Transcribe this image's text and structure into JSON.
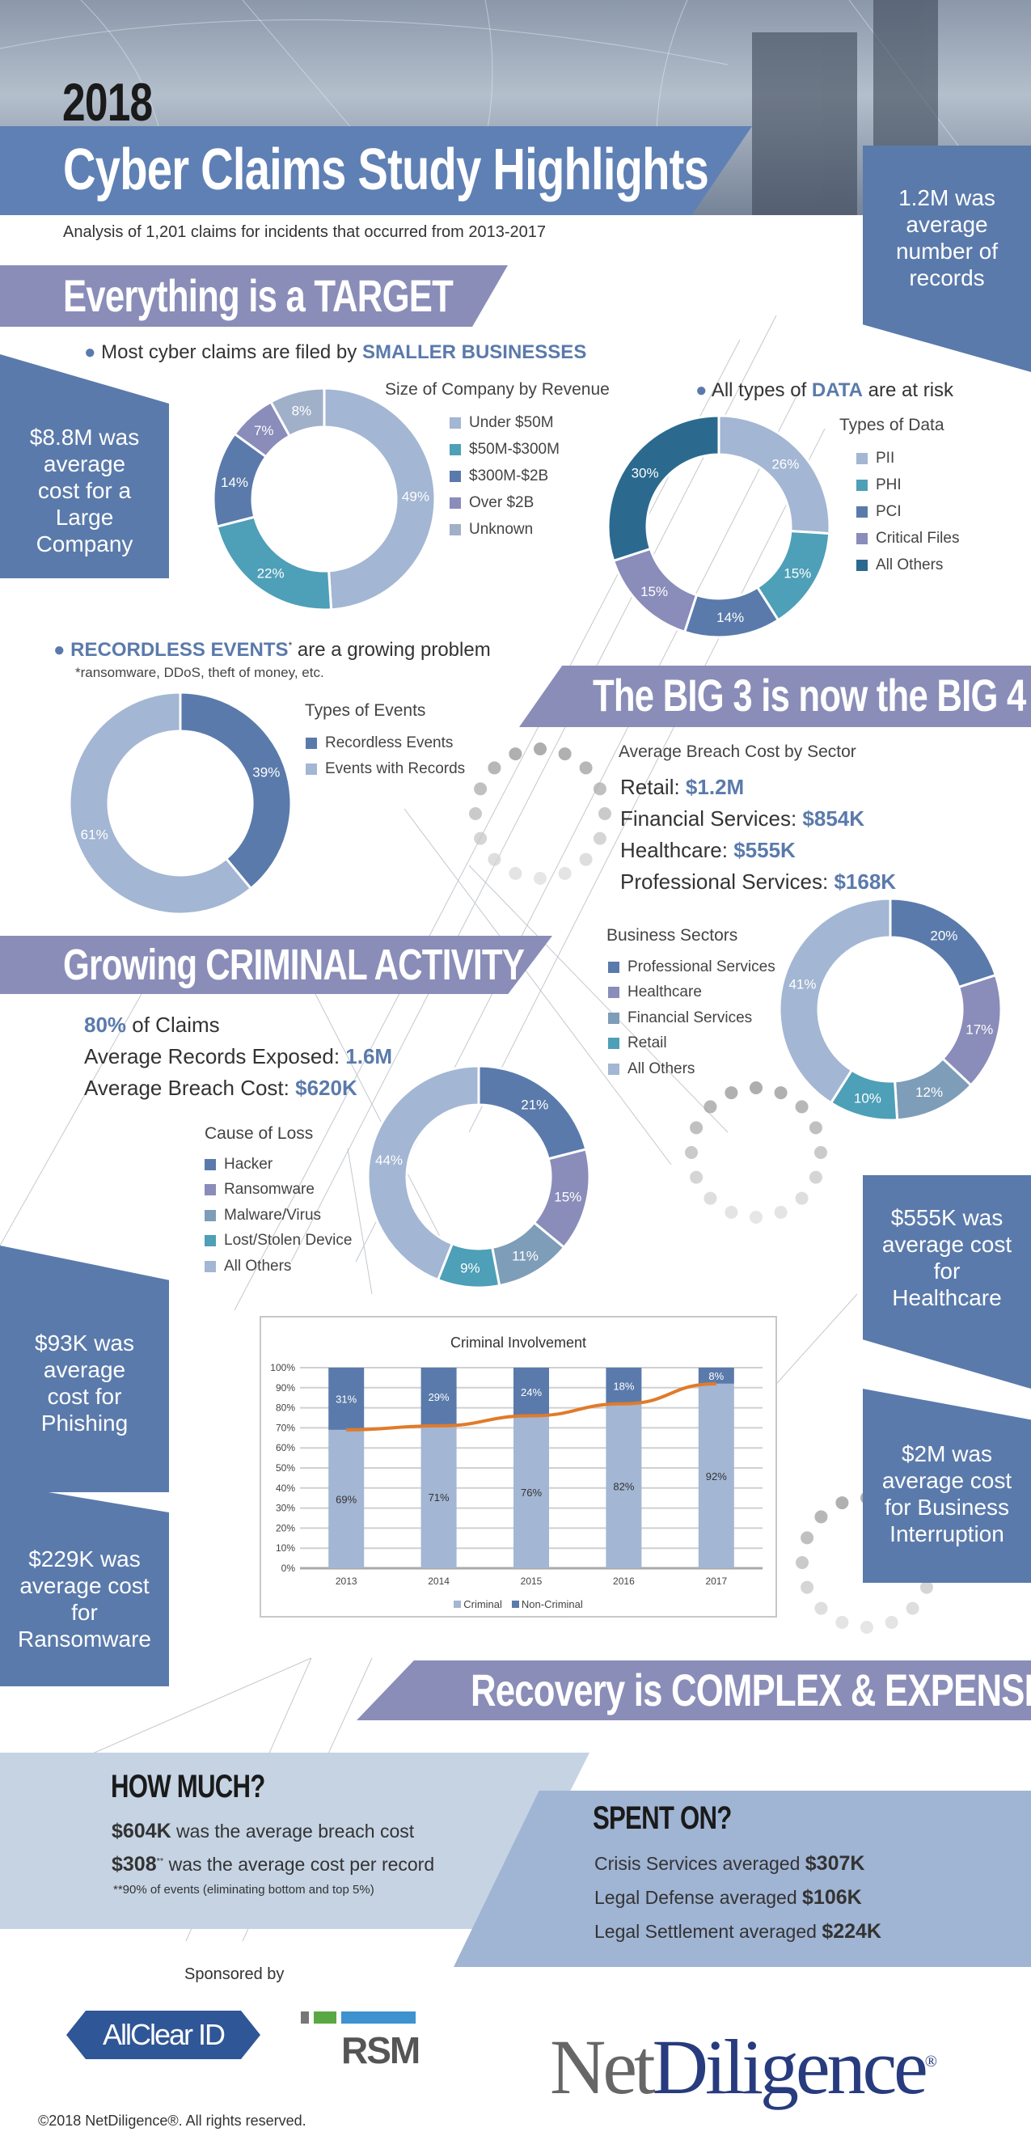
{
  "header": {
    "year": "2018",
    "title": "Cyber Claims Study Highlights",
    "subtitle": "Analysis of 1,201 claims for incidents that occurred from 2013-2017"
  },
  "colors": {
    "dark_blue": "#5a7aab",
    "light_blue": "#a3b6d3",
    "teal": "#4e9fb8",
    "purple": "#8a8cba",
    "gray_blue": "#7d9db8",
    "dark_teal": "#2b6a8e",
    "banner": "#8a8db8",
    "orange": "#e07b2a"
  },
  "callouts": {
    "records": "1.2M was average number of records",
    "large_company": "$8.8M was average cost for a Large Company",
    "healthcare": "$555K was average cost for Healthcare",
    "phishing": "$93K was average cost for Phishing",
    "ransomware": "$229K was average cost for Ransomware",
    "business_interruption": "$2M was average cost for Business Interruption"
  },
  "target": {
    "heading": "Everything is a TARGET",
    "bullet_pre": "Most cyber claims are filed by ",
    "bullet_hl": "SMALLER BUSINESSES",
    "data_pre": "All types of ",
    "data_hl": "DATA",
    "data_post": " are at risk"
  },
  "recordless": {
    "hl": "RECORDLESS EVENTS",
    "mark": "*",
    "post": " are a growing problem",
    "footnote": "*ransomware, DDoS, theft of money, etc."
  },
  "big4": {
    "heading": "The BIG 3 is now the BIG 4",
    "subheading": "Average Breach Cost by Sector",
    "lines": [
      {
        "label": "Retail: ",
        "value": "$1.2M"
      },
      {
        "label": "Financial Services: ",
        "value": "$854K"
      },
      {
        "label": "Healthcare: ",
        "value": "$555K"
      },
      {
        "label": "Professional Services: ",
        "value": "$168K"
      }
    ]
  },
  "criminal": {
    "heading": "Growing CRIMINAL ACTIVITY",
    "claims_value": "80%",
    "claims_label": " of Claims",
    "records_label": "Average Records Exposed: ",
    "records_value": "1.6M",
    "cost_label": "Average Breach Cost: ",
    "cost_value": "$620K"
  },
  "recovery": {
    "heading": "Recovery is COMPLEX & EXPENSIVE",
    "how_much": {
      "title": "HOW MUCH?",
      "line1_value": "$604K",
      "line1_text": " was the average breach cost",
      "line2_value": "$308",
      "line2_mark": "**",
      "line2_text": " was the average cost per record",
      "footnote": "**90% of events (eliminating bottom and top 5%)"
    },
    "spent_on": {
      "title": "SPENT ON?",
      "items": [
        {
          "label": "Crisis Services averaged ",
          "value": "$307K"
        },
        {
          "label": "Legal Defense averaged ",
          "value": "$106K"
        },
        {
          "label": "Legal Settlement averaged ",
          "value": "$224K"
        }
      ]
    }
  },
  "footer": {
    "sponsored_by": "Sponsored by",
    "sponsor1": "AllClear ID",
    "sponsor2": "RSM",
    "brand_net": "Net",
    "brand_diligence": "Diligence",
    "brand_reg": "®",
    "copyright": "©2018 NetDiligence®. All rights reserved."
  },
  "chart_data": [
    {
      "type": "pie",
      "id": "revenue",
      "title": "Size of Company by Revenue",
      "categories": [
        "Under $50M",
        "$50M-$300M",
        "$300M-$2B",
        "Over $2B",
        "Unknown"
      ],
      "values": [
        49,
        22,
        14,
        7,
        8
      ],
      "colors": [
        "#a3b6d3",
        "#4e9fb8",
        "#5a7aab",
        "#8a8cba",
        "#a0b0c8"
      ],
      "labels": [
        "49%",
        "22%",
        "14%",
        "7%",
        "8%"
      ]
    },
    {
      "type": "pie",
      "id": "data",
      "title": "Types of Data",
      "categories": [
        "PII",
        "PHI",
        "PCI",
        "Critical Files",
        "All Others"
      ],
      "values": [
        26,
        15,
        14,
        15,
        30
      ],
      "colors": [
        "#a3b6d3",
        "#4e9fb8",
        "#5a7aab",
        "#8a8cba",
        "#2b6a8e"
      ],
      "labels": [
        "26%",
        "15%",
        "14%",
        "15%",
        "30%"
      ]
    },
    {
      "type": "pie",
      "id": "events",
      "title": "Types of Events",
      "categories": [
        "Recordless Events",
        "Events with Records"
      ],
      "values": [
        39,
        61
      ],
      "colors": [
        "#5a7aab",
        "#a3b6d3"
      ],
      "labels": [
        "39%",
        "61%"
      ]
    },
    {
      "type": "pie",
      "id": "sectors",
      "title": "Business Sectors",
      "categories": [
        "Professional Services",
        "Healthcare",
        "Financial Services",
        "Retail",
        "All Others"
      ],
      "values": [
        20,
        17,
        12,
        10,
        41
      ],
      "colors": [
        "#5a7aab",
        "#8a8cba",
        "#7d9db8",
        "#4e9fb8",
        "#a3b6d3"
      ],
      "labels": [
        "20%",
        "17%",
        "12%",
        "10%",
        "41%"
      ]
    },
    {
      "type": "pie",
      "id": "loss",
      "title": "Cause of Loss",
      "categories": [
        "Hacker",
        "Ransomware",
        "Malware/Virus",
        "Lost/Stolen Device",
        "All Others"
      ],
      "values": [
        21,
        15,
        11,
        9,
        44
      ],
      "colors": [
        "#5a7aab",
        "#8a8cba",
        "#7d9db8",
        "#4e9fb8",
        "#a3b6d3"
      ],
      "labels": [
        "21%",
        "15%",
        "11%",
        "9%",
        "44%"
      ]
    },
    {
      "type": "bar",
      "id": "criminal",
      "title": "Criminal Involvement",
      "categories": [
        "2013",
        "2014",
        "2015",
        "2016",
        "2017"
      ],
      "series": [
        {
          "name": "Criminal",
          "values": [
            69,
            71,
            76,
            82,
            92
          ],
          "color": "#a3b6d3",
          "labels": [
            "69%",
            "71%",
            "76%",
            "82%",
            "92%"
          ]
        },
        {
          "name": "Non-Criminal",
          "values": [
            31,
            29,
            24,
            18,
            8
          ],
          "color": "#5a7aab",
          "labels": [
            "31%",
            "29%",
            "24%",
            "18%",
            "8%"
          ]
        }
      ],
      "trend_line": {
        "values": [
          69,
          71,
          76,
          82,
          92
        ],
        "color": "#e07b2a"
      },
      "ylim": [
        0,
        100
      ],
      "yticks": [
        "0%",
        "10%",
        "20%",
        "30%",
        "40%",
        "50%",
        "60%",
        "70%",
        "80%",
        "90%",
        "100%"
      ],
      "grid": true,
      "legend": "bottom",
      "stacked": true
    }
  ]
}
